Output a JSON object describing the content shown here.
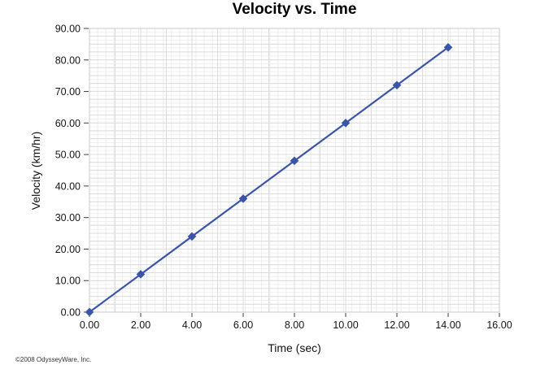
{
  "copyright": "©2008 OdysseyWare, Inc.",
  "chart_data": {
    "type": "line",
    "title": "Velocity vs. Time",
    "xlabel": "Time (sec)",
    "ylabel": "Velocity (km/hr)",
    "x": [
      0,
      2,
      4,
      6,
      8,
      10,
      12,
      14
    ],
    "y": [
      0,
      12,
      24,
      36,
      48,
      60,
      72,
      84
    ],
    "xlim": [
      0,
      16
    ],
    "ylim": [
      0,
      90
    ],
    "x_ticks": [
      0,
      2,
      4,
      6,
      8,
      10,
      12,
      14,
      16
    ],
    "y_ticks": [
      0,
      10,
      20,
      30,
      40,
      50,
      60,
      70,
      80,
      90
    ],
    "x_tick_labels": [
      "0.00",
      "2.00",
      "4.00",
      "6.00",
      "8.00",
      "10.00",
      "12.00",
      "14.00",
      "16.00"
    ],
    "y_tick_labels": [
      "0.00",
      "10.00",
      "20.00",
      "30.00",
      "40.00",
      "50.00",
      "60.00",
      "70.00",
      "80.00",
      "90.00"
    ],
    "line_color": "#3a55a8",
    "marker": "diamond",
    "grid": true,
    "legend_position": "none"
  }
}
